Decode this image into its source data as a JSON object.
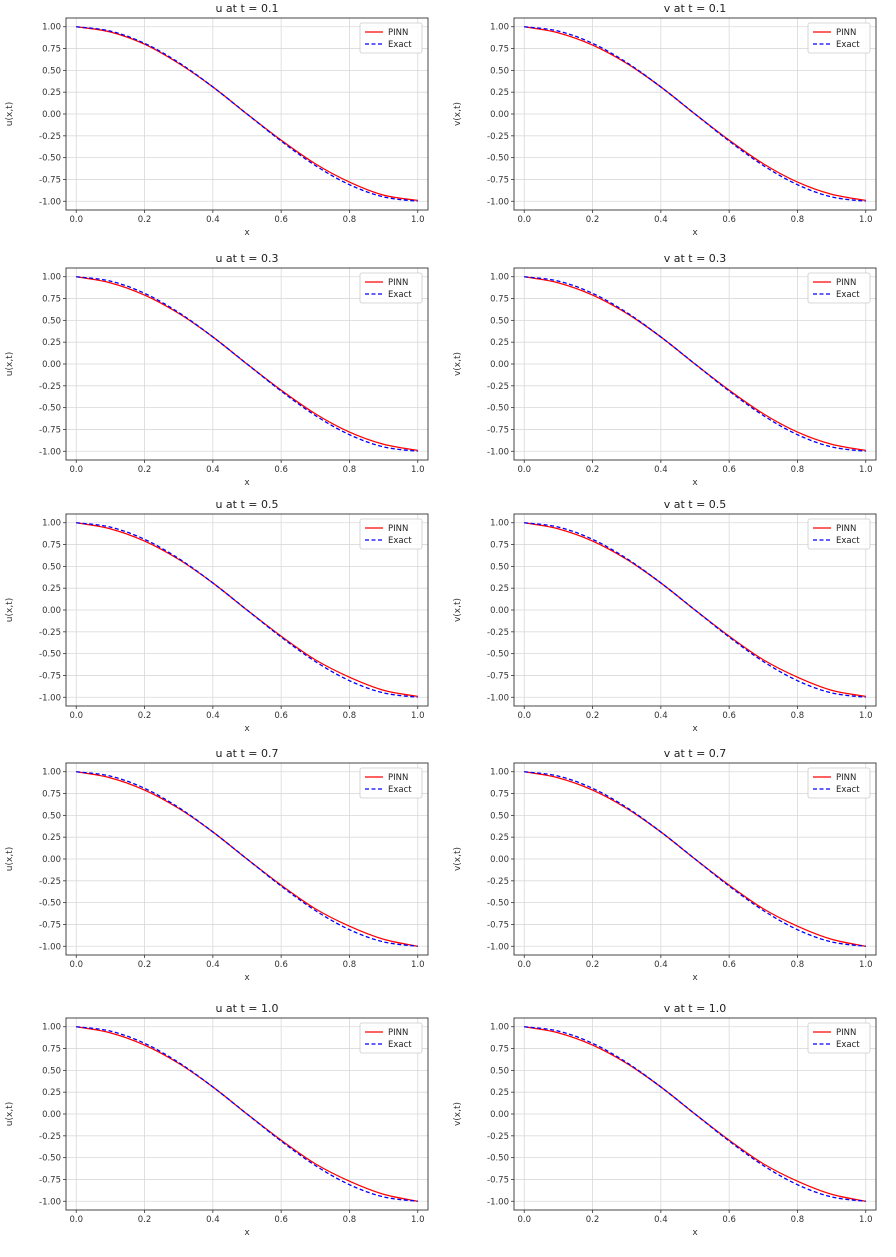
{
  "chart_data": [
    {
      "type": "line",
      "title": "u at t = 0.1",
      "xlabel": "x",
      "ylabel": "u(x,t)",
      "xlim": [
        -0.03,
        1.03
      ],
      "ylim": [
        -1.1,
        1.1
      ],
      "xticks": [
        "0.0",
        "0.2",
        "0.4",
        "0.6",
        "0.8",
        "1.0"
      ],
      "yticks": [
        "1.00",
        "0.75",
        "0.50",
        "0.25",
        "0.00",
        "-0.25",
        "-0.50",
        "-0.75",
        "-1.00"
      ],
      "grid": true,
      "legend_position": "top-right",
      "x": [
        0.0,
        0.1,
        0.2,
        0.3,
        0.4,
        0.5,
        0.6,
        0.7,
        0.8,
        0.9,
        1.0
      ],
      "series": [
        {
          "name": "PINN",
          "color": "#ff0000",
          "dash": "solid",
          "values": [
            1.0,
            0.94,
            0.8,
            0.58,
            0.31,
            0.0,
            -0.3,
            -0.57,
            -0.78,
            -0.93,
            -0.99
          ]
        },
        {
          "name": "Exact",
          "color": "#0000ff",
          "dash": "dashed",
          "values": [
            1.0,
            0.95,
            0.81,
            0.59,
            0.31,
            0.0,
            -0.31,
            -0.59,
            -0.81,
            -0.95,
            -1.0
          ]
        }
      ]
    },
    {
      "type": "line",
      "title": "v at t = 0.1",
      "xlabel": "x",
      "ylabel": "v(x,t)",
      "xlim": [
        -0.03,
        1.03
      ],
      "ylim": [
        -1.1,
        1.1
      ],
      "xticks": [
        "0.0",
        "0.2",
        "0.4",
        "0.6",
        "0.8",
        "1.0"
      ],
      "yticks": [
        "1.00",
        "0.75",
        "0.50",
        "0.25",
        "0.00",
        "-0.25",
        "-0.50",
        "-0.75",
        "-1.00"
      ],
      "grid": true,
      "legend_position": "top-right",
      "x": [
        0.0,
        0.1,
        0.2,
        0.3,
        0.4,
        0.5,
        0.6,
        0.7,
        0.8,
        0.9,
        1.0
      ],
      "series": [
        {
          "name": "PINN",
          "color": "#ff0000",
          "dash": "solid",
          "values": [
            1.0,
            0.93,
            0.79,
            0.58,
            0.31,
            0.0,
            -0.3,
            -0.57,
            -0.78,
            -0.92,
            -0.99
          ]
        },
        {
          "name": "Exact",
          "color": "#0000ff",
          "dash": "dashed",
          "values": [
            1.0,
            0.95,
            0.81,
            0.59,
            0.31,
            0.0,
            -0.31,
            -0.59,
            -0.81,
            -0.95,
            -1.0
          ]
        }
      ]
    },
    {
      "type": "line",
      "title": "u at t = 0.3",
      "xlabel": "x",
      "ylabel": "u(x,t)",
      "xlim": [
        -0.03,
        1.03
      ],
      "ylim": [
        -1.1,
        1.1
      ],
      "xticks": [
        "0.0",
        "0.2",
        "0.4",
        "0.6",
        "0.8",
        "1.0"
      ],
      "yticks": [
        "1.00",
        "0.75",
        "0.50",
        "0.25",
        "0.00",
        "-0.25",
        "-0.50",
        "-0.75",
        "-1.00"
      ],
      "grid": true,
      "legend_position": "top-right",
      "x": [
        0.0,
        0.1,
        0.2,
        0.3,
        0.4,
        0.5,
        0.6,
        0.7,
        0.8,
        0.9,
        1.0
      ],
      "series": [
        {
          "name": "PINN",
          "color": "#ff0000",
          "dash": "solid",
          "values": [
            1.0,
            0.93,
            0.79,
            0.58,
            0.31,
            0.0,
            -0.3,
            -0.57,
            -0.78,
            -0.92,
            -0.99
          ]
        },
        {
          "name": "Exact",
          "color": "#0000ff",
          "dash": "dashed",
          "values": [
            1.0,
            0.95,
            0.81,
            0.59,
            0.31,
            0.0,
            -0.31,
            -0.59,
            -0.81,
            -0.95,
            -1.0
          ]
        }
      ]
    },
    {
      "type": "line",
      "title": "v at t = 0.3",
      "xlabel": "x",
      "ylabel": "v(x,t)",
      "xlim": [
        -0.03,
        1.03
      ],
      "ylim": [
        -1.1,
        1.1
      ],
      "xticks": [
        "0.0",
        "0.2",
        "0.4",
        "0.6",
        "0.8",
        "1.0"
      ],
      "yticks": [
        "1.00",
        "0.75",
        "0.50",
        "0.25",
        "0.00",
        "-0.25",
        "-0.50",
        "-0.75",
        "-1.00"
      ],
      "grid": true,
      "legend_position": "top-right",
      "x": [
        0.0,
        0.1,
        0.2,
        0.3,
        0.4,
        0.5,
        0.6,
        0.7,
        0.8,
        0.9,
        1.0
      ],
      "series": [
        {
          "name": "PINN",
          "color": "#ff0000",
          "dash": "solid",
          "values": [
            1.0,
            0.93,
            0.79,
            0.58,
            0.31,
            0.0,
            -0.3,
            -0.57,
            -0.78,
            -0.92,
            -0.99
          ]
        },
        {
          "name": "Exact",
          "color": "#0000ff",
          "dash": "dashed",
          "values": [
            1.0,
            0.95,
            0.81,
            0.59,
            0.31,
            0.0,
            -0.31,
            -0.59,
            -0.81,
            -0.95,
            -1.0
          ]
        }
      ]
    },
    {
      "type": "line",
      "title": "u at t = 0.5",
      "xlabel": "x",
      "ylabel": "u(x,t)",
      "xlim": [
        -0.03,
        1.03
      ],
      "ylim": [
        -1.1,
        1.1
      ],
      "xticks": [
        "0.0",
        "0.2",
        "0.4",
        "0.6",
        "0.8",
        "1.0"
      ],
      "yticks": [
        "1.00",
        "0.75",
        "0.50",
        "0.25",
        "0.00",
        "-0.25",
        "-0.50",
        "-0.75",
        "-1.00"
      ],
      "grid": true,
      "legend_position": "top-right",
      "x": [
        0.0,
        0.1,
        0.2,
        0.3,
        0.4,
        0.5,
        0.6,
        0.7,
        0.8,
        0.9,
        1.0
      ],
      "series": [
        {
          "name": "PINN",
          "color": "#ff0000",
          "dash": "solid",
          "values": [
            1.0,
            0.93,
            0.79,
            0.58,
            0.31,
            0.0,
            -0.3,
            -0.57,
            -0.77,
            -0.92,
            -0.99
          ]
        },
        {
          "name": "Exact",
          "color": "#0000ff",
          "dash": "dashed",
          "values": [
            1.0,
            0.95,
            0.81,
            0.59,
            0.31,
            0.0,
            -0.31,
            -0.59,
            -0.81,
            -0.95,
            -1.0
          ]
        }
      ]
    },
    {
      "type": "line",
      "title": "v at t = 0.5",
      "xlabel": "x",
      "ylabel": "v(x,t)",
      "xlim": [
        -0.03,
        1.03
      ],
      "ylim": [
        -1.1,
        1.1
      ],
      "xticks": [
        "0.0",
        "0.2",
        "0.4",
        "0.6",
        "0.8",
        "1.0"
      ],
      "yticks": [
        "1.00",
        "0.75",
        "0.50",
        "0.25",
        "0.00",
        "-0.25",
        "-0.50",
        "-0.75",
        "-1.00"
      ],
      "grid": true,
      "legend_position": "top-right",
      "x": [
        0.0,
        0.1,
        0.2,
        0.3,
        0.4,
        0.5,
        0.6,
        0.7,
        0.8,
        0.9,
        1.0
      ],
      "series": [
        {
          "name": "PINN",
          "color": "#ff0000",
          "dash": "solid",
          "values": [
            1.0,
            0.93,
            0.79,
            0.58,
            0.31,
            0.0,
            -0.3,
            -0.57,
            -0.77,
            -0.92,
            -0.99
          ]
        },
        {
          "name": "Exact",
          "color": "#0000ff",
          "dash": "dashed",
          "values": [
            1.0,
            0.95,
            0.81,
            0.59,
            0.31,
            0.0,
            -0.31,
            -0.59,
            -0.81,
            -0.95,
            -1.0
          ]
        }
      ]
    },
    {
      "type": "line",
      "title": "u at t = 0.7",
      "xlabel": "x",
      "ylabel": "u(x,t)",
      "xlim": [
        -0.03,
        1.03
      ],
      "ylim": [
        -1.1,
        1.1
      ],
      "xticks": [
        "0.0",
        "0.2",
        "0.4",
        "0.6",
        "0.8",
        "1.0"
      ],
      "yticks": [
        "1.00",
        "0.75",
        "0.50",
        "0.25",
        "0.00",
        "-0.25",
        "-0.50",
        "-0.75",
        "-1.00"
      ],
      "grid": true,
      "legend_position": "top-right",
      "x": [
        0.0,
        0.1,
        0.2,
        0.3,
        0.4,
        0.5,
        0.6,
        0.7,
        0.8,
        0.9,
        1.0
      ],
      "series": [
        {
          "name": "PINN",
          "color": "#ff0000",
          "dash": "solid",
          "values": [
            1.0,
            0.93,
            0.79,
            0.58,
            0.31,
            0.0,
            -0.3,
            -0.57,
            -0.77,
            -0.92,
            -1.0
          ]
        },
        {
          "name": "Exact",
          "color": "#0000ff",
          "dash": "dashed",
          "values": [
            1.0,
            0.95,
            0.81,
            0.59,
            0.31,
            0.0,
            -0.31,
            -0.59,
            -0.81,
            -0.95,
            -1.0
          ]
        }
      ]
    },
    {
      "type": "line",
      "title": "v at t = 0.7",
      "xlabel": "x",
      "ylabel": "v(x,t)",
      "xlim": [
        -0.03,
        1.03
      ],
      "ylim": [
        -1.1,
        1.1
      ],
      "xticks": [
        "0.0",
        "0.2",
        "0.4",
        "0.6",
        "0.8",
        "1.0"
      ],
      "yticks": [
        "1.00",
        "0.75",
        "0.50",
        "0.25",
        "0.00",
        "-0.25",
        "-0.50",
        "-0.75",
        "-1.00"
      ],
      "grid": true,
      "legend_position": "top-right",
      "x": [
        0.0,
        0.1,
        0.2,
        0.3,
        0.4,
        0.5,
        0.6,
        0.7,
        0.8,
        0.9,
        1.0
      ],
      "series": [
        {
          "name": "PINN",
          "color": "#ff0000",
          "dash": "solid",
          "values": [
            1.0,
            0.93,
            0.79,
            0.58,
            0.31,
            0.0,
            -0.3,
            -0.57,
            -0.77,
            -0.92,
            -1.0
          ]
        },
        {
          "name": "Exact",
          "color": "#0000ff",
          "dash": "dashed",
          "values": [
            1.0,
            0.95,
            0.81,
            0.59,
            0.31,
            0.0,
            -0.31,
            -0.59,
            -0.81,
            -0.95,
            -1.0
          ]
        }
      ]
    },
    {
      "type": "line",
      "title": "u at t = 1.0",
      "xlabel": "x",
      "ylabel": "u(x,t)",
      "xlim": [
        -0.03,
        1.03
      ],
      "ylim": [
        -1.1,
        1.1
      ],
      "xticks": [
        "0.0",
        "0.2",
        "0.4",
        "0.6",
        "0.8",
        "1.0"
      ],
      "yticks": [
        "1.00",
        "0.75",
        "0.50",
        "0.25",
        "0.00",
        "-0.25",
        "-0.50",
        "-0.75",
        "-1.00"
      ],
      "grid": true,
      "legend_position": "top-right",
      "x": [
        0.0,
        0.1,
        0.2,
        0.3,
        0.4,
        0.5,
        0.6,
        0.7,
        0.8,
        0.9,
        1.0
      ],
      "series": [
        {
          "name": "PINN",
          "color": "#ff0000",
          "dash": "solid",
          "values": [
            1.0,
            0.93,
            0.79,
            0.58,
            0.31,
            0.0,
            -0.3,
            -0.57,
            -0.77,
            -0.92,
            -1.0
          ]
        },
        {
          "name": "Exact",
          "color": "#0000ff",
          "dash": "dashed",
          "values": [
            1.0,
            0.95,
            0.81,
            0.59,
            0.31,
            0.0,
            -0.31,
            -0.59,
            -0.81,
            -0.95,
            -1.0
          ]
        }
      ]
    },
    {
      "type": "line",
      "title": "v at t = 1.0",
      "xlabel": "x",
      "ylabel": "v(x,t)",
      "xlim": [
        -0.03,
        1.03
      ],
      "ylim": [
        -1.1,
        1.1
      ],
      "xticks": [
        "0.0",
        "0.2",
        "0.4",
        "0.6",
        "0.8",
        "1.0"
      ],
      "yticks": [
        "1.00",
        "0.75",
        "0.50",
        "0.25",
        "0.00",
        "-0.25",
        "-0.50",
        "-0.75",
        "-1.00"
      ],
      "grid": true,
      "legend_position": "top-right",
      "x": [
        0.0,
        0.1,
        0.2,
        0.3,
        0.4,
        0.5,
        0.6,
        0.7,
        0.8,
        0.9,
        1.0
      ],
      "series": [
        {
          "name": "PINN",
          "color": "#ff0000",
          "dash": "solid",
          "values": [
            1.0,
            0.93,
            0.79,
            0.58,
            0.31,
            0.0,
            -0.3,
            -0.57,
            -0.77,
            -0.92,
            -1.0
          ]
        },
        {
          "name": "Exact",
          "color": "#0000ff",
          "dash": "dashed",
          "values": [
            1.0,
            0.95,
            0.81,
            0.59,
            0.31,
            0.0,
            -0.31,
            -0.59,
            -0.81,
            -0.95,
            -1.0
          ]
        }
      ]
    }
  ]
}
